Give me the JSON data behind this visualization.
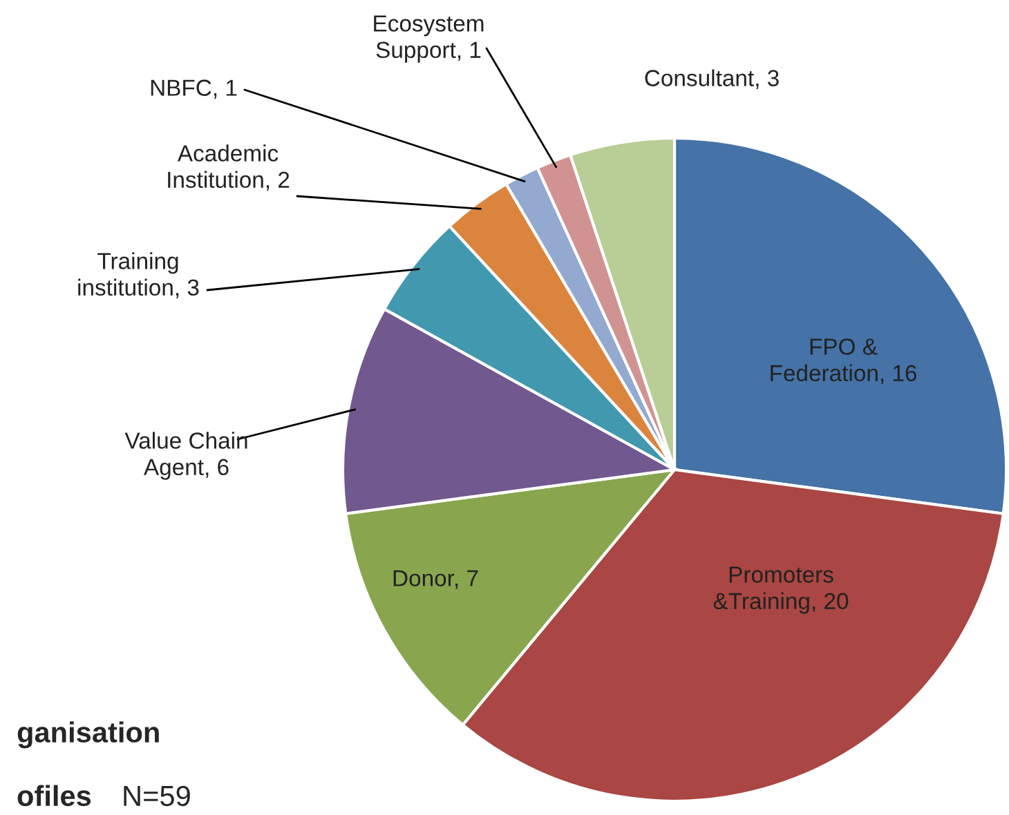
{
  "chart_data": {
    "type": "pie",
    "categories": [
      "FPO &\nFederation, 16",
      "Promoters\n&Training, 20",
      "Donor, 7",
      "Value Chain\nAgent, 6",
      "Training\ninstitution, 3",
      "Academic\nInstitution, 2",
      "NBFC, 1",
      "Ecosystem\nSupport, 1",
      "Consultant, 3"
    ],
    "values": [
      16,
      20,
      7,
      6,
      3,
      2,
      1,
      1,
      3
    ],
    "colors": [
      "#4572a7",
      "#aa4643",
      "#89a54e",
      "#71588f",
      "#4198af",
      "#db843d",
      "#93a9cf",
      "#d19392",
      "#b9cd96"
    ],
    "annotations": [
      "ganisation",
      "ofiles",
      "N=59"
    ]
  }
}
